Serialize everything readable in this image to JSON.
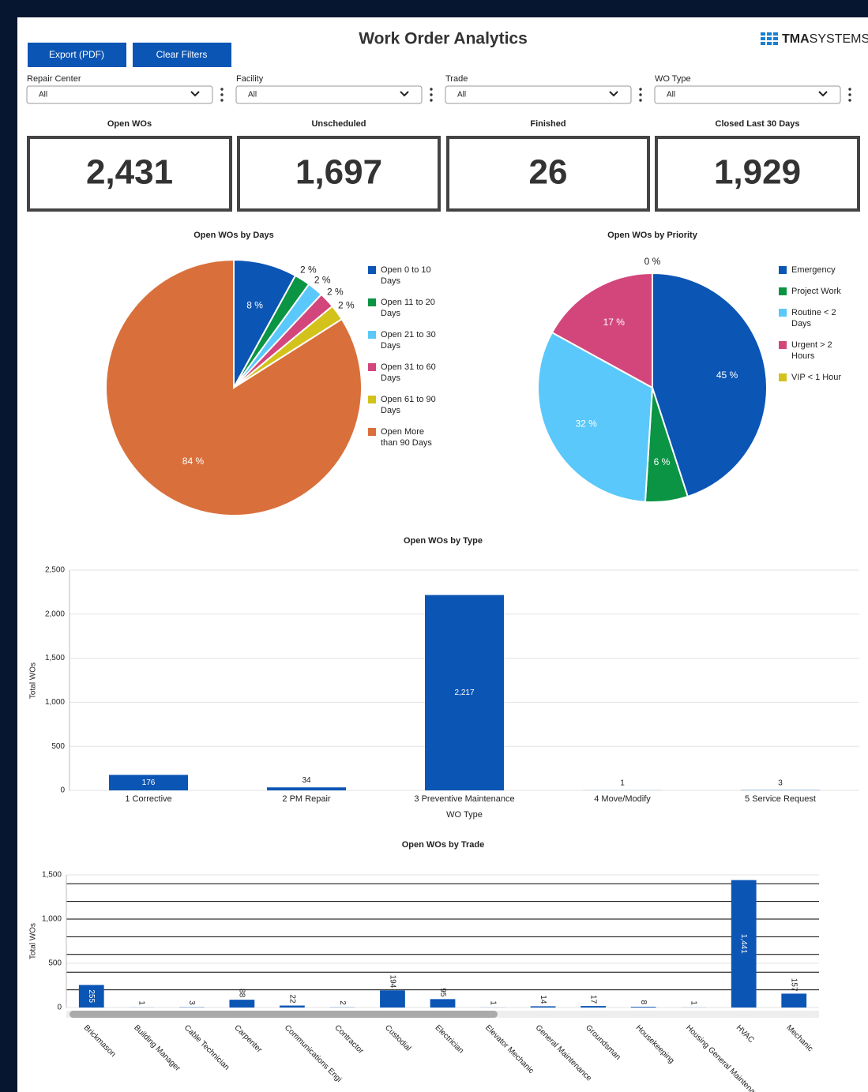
{
  "header": {
    "title": "Work Order Analytics",
    "logo_bold": "TMA",
    "logo_light": "SYSTEMS",
    "buttons": [
      "Export (PDF)",
      "Clear Filters"
    ]
  },
  "filters": [
    {
      "label": "Repair Center",
      "value": "All"
    },
    {
      "label": "Facility",
      "value": "All"
    },
    {
      "label": "Trade",
      "value": "All"
    },
    {
      "label": "WO Type",
      "value": "All"
    }
  ],
  "kpis": [
    {
      "label": "Open WOs",
      "value": "2,431"
    },
    {
      "label": "Unscheduled",
      "value": "1,697"
    },
    {
      "label": "Finished",
      "value": "26"
    },
    {
      "label": "Closed Last 30 Days",
      "value": "1,929"
    }
  ],
  "chart_data": [
    {
      "type": "pie",
      "title": "Open WOs by Days",
      "categories": [
        "Open 0 to 10 Days",
        "Open 11 to 20 Days",
        "Open 21 to 30 Days",
        "Open 31 to 60 Days",
        "Open 61 to 90 Days",
        "Open More than 90 Days"
      ],
      "values": [
        8,
        2,
        2,
        2,
        2,
        84
      ],
      "value_labels": [
        "8 %",
        "2 %",
        "2 %",
        "2 %",
        "2 %",
        "84 %"
      ],
      "colors": [
        "#0b55b5",
        "#0b9444",
        "#5ac8fa",
        "#d2467c",
        "#d2c21b",
        "#d9703c"
      ]
    },
    {
      "type": "pie",
      "title": "Open WOs by Priority",
      "categories": [
        "Emergency",
        "Project Work",
        "Routine < 2 Days",
        "Urgent > 2 Hours",
        "VIP < 1 Hour"
      ],
      "values": [
        45,
        6,
        32,
        17,
        0
      ],
      "value_labels": [
        "45 %",
        "6 %",
        "32 %",
        "17 %",
        "0 %"
      ],
      "colors": [
        "#0b55b5",
        "#0b9444",
        "#5ac8fa",
        "#d2467c",
        "#d2c21b"
      ]
    },
    {
      "type": "bar",
      "title": "Open WOs by Type",
      "x_label": "WO Type",
      "y_label": "Total WOs",
      "categories": [
        "1 Corrective",
        "2 PM Repair",
        "3 Preventive Maintenance",
        "4 Move/Modify",
        "5 Service Request"
      ],
      "values": [
        176,
        34,
        2217,
        1,
        3
      ],
      "value_labels": [
        "176",
        "34",
        "2,217",
        "1",
        "3"
      ],
      "color": "#0b55b5",
      "ylim": [
        0,
        2500
      ],
      "yticks": [
        0,
        500,
        {
          "value": 1000,
          "label": "1,000"
        },
        {
          "value": 1500,
          "label": "1,500"
        },
        {
          "value": 2000,
          "label": "2,000"
        },
        {
          "value": 2500,
          "label": "2,500"
        }
      ],
      "grid": true
    },
    {
      "type": "bar",
      "title": "Open WOs by Trade",
      "y_label": "Total WOs",
      "categories": [
        "Brickmason",
        "Building Manager",
        "Cable Technician",
        "Carpenter",
        "Communications Engi",
        "Contractor",
        "Custodial",
        "Electrician",
        "Elevator Mechanic",
        "General Maintenance",
        "Groundsman",
        "Housekeeping",
        "Housing General Maintenance",
        "HVAC",
        "Mechanic"
      ],
      "values": [
        255,
        1,
        3,
        88,
        22,
        2,
        194,
        95,
        1,
        14,
        17,
        8,
        1,
        1441,
        157
      ],
      "value_labels": [
        "255",
        "1",
        "3",
        "88",
        "22",
        "2",
        "194",
        "95",
        "1",
        "14",
        "17",
        "8",
        "1",
        "1,441",
        "157"
      ],
      "color": "#0b55b5",
      "ylim": [
        0,
        1500
      ],
      "yticks": [
        0,
        500,
        {
          "value": 1000,
          "label": "1,000"
        },
        {
          "value": 1500,
          "label": "1,500"
        }
      ],
      "grid": true,
      "minor_grid": [
        200,
        400,
        600,
        800,
        1000,
        1200,
        1400
      ],
      "minor_grid_color": "#000000"
    }
  ]
}
